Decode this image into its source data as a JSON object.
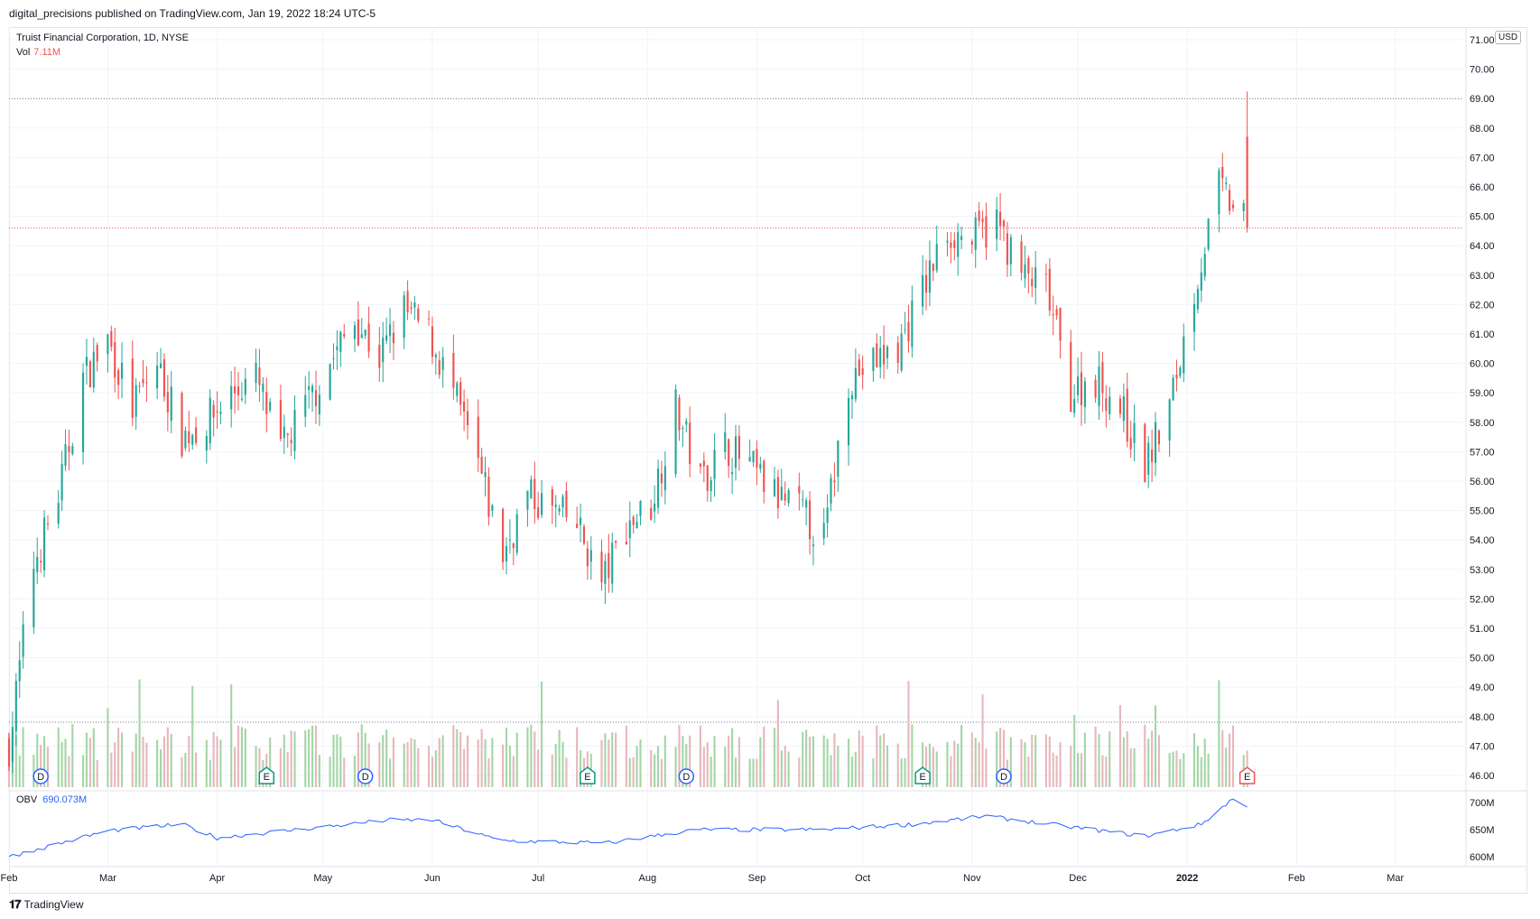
{
  "header": {
    "published_line": "digital_precisions published on TradingView.com, Jan 19, 2022 18:24 UTC-5"
  },
  "legend": {
    "symbol": "Truist Financial Corporation, 1D, NYSE",
    "vol_label": "Vol",
    "vol_value": "7.11M",
    "obv_label": "OBV",
    "obv_value": "690.073M"
  },
  "currency": "USD",
  "footer": {
    "brand": "TradingView"
  },
  "colors": {
    "up": "#26a69a",
    "down": "#ef5350",
    "vol_up": "#a5d6a7",
    "vol_down": "#e6b8bd",
    "obv": "#2962ff",
    "grid": "#f0f3fa"
  },
  "event_badges": [
    {
      "letter": "D",
      "date": "2021-02-10",
      "kind": "dividend"
    },
    {
      "letter": "E",
      "date": "2021-04-15",
      "kind": "earnings"
    },
    {
      "letter": "D",
      "date": "2021-05-13",
      "kind": "dividend"
    },
    {
      "letter": "E",
      "date": "2021-07-15",
      "kind": "earnings"
    },
    {
      "letter": "D",
      "date": "2021-08-12",
      "kind": "dividend"
    },
    {
      "letter": "E",
      "date": "2021-10-18",
      "kind": "earnings"
    },
    {
      "letter": "D",
      "date": "2021-11-10",
      "kind": "dividend"
    },
    {
      "letter": "E",
      "date": "2022-01-18",
      "kind": "earnings-upcoming"
    }
  ],
  "chart_data": {
    "type": "candlestick",
    "title": "Truist Financial Corporation, 1D, NYSE",
    "y_price_ticks": [
      "71.00",
      "70.00",
      "69.00",
      "68.00",
      "67.00",
      "66.00",
      "65.00",
      "64.00",
      "63.00",
      "62.00",
      "61.00",
      "60.00",
      "59.00",
      "58.00",
      "57.00",
      "56.00",
      "55.00",
      "54.00",
      "53.00",
      "52.00",
      "51.00",
      "50.00",
      "49.00",
      "48.00",
      "47.00",
      "46.00"
    ],
    "obv_ticks": [
      "700M",
      "650M",
      "600M"
    ],
    "x_ticks": [
      "Feb",
      "Mar",
      "Apr",
      "May",
      "Jun",
      "Jul",
      "Aug",
      "Sep",
      "Oct",
      "Nov",
      "Dec",
      "2022",
      "Feb",
      "Mar"
    ],
    "ylim": [
      45.6,
      71.0
    ],
    "x_range": [
      "2021-02-01",
      "2022-03-20"
    ],
    "horizontal_lines": [
      {
        "price": 69.0,
        "style": "dotted",
        "color": "#787b86"
      },
      {
        "price": 64.6,
        "style": "dotted",
        "color": "#ef5350"
      }
    ],
    "series": [
      {
        "name": "Price",
        "anchors": [
          [
            "2021-02-01",
            47.0
          ],
          [
            "2021-02-08",
            53.2
          ],
          [
            "2021-02-15",
            55.5
          ],
          [
            "2021-02-22",
            59.5
          ],
          [
            "2021-03-01",
            60.8
          ],
          [
            "2021-03-08",
            58.5
          ],
          [
            "2021-03-15",
            60.0
          ],
          [
            "2021-03-22",
            57.5
          ],
          [
            "2021-03-29",
            58.0
          ],
          [
            "2021-04-05",
            59.0
          ],
          [
            "2021-04-12",
            59.5
          ],
          [
            "2021-04-19",
            57.0
          ],
          [
            "2021-04-26",
            58.5
          ],
          [
            "2021-05-03",
            60.0
          ],
          [
            "2021-05-10",
            61.5
          ],
          [
            "2021-05-17",
            60.2
          ],
          [
            "2021-05-24",
            61.8
          ],
          [
            "2021-05-31",
            61.0
          ],
          [
            "2021-06-07",
            59.0
          ],
          [
            "2021-06-14",
            56.5
          ],
          [
            "2021-06-21",
            53.5
          ],
          [
            "2021-06-28",
            55.5
          ],
          [
            "2021-07-05",
            55.0
          ],
          [
            "2021-07-12",
            54.5
          ],
          [
            "2021-07-19",
            52.5
          ],
          [
            "2021-07-26",
            54.5
          ],
          [
            "2021-08-02",
            55.2
          ],
          [
            "2021-08-09",
            58.5
          ],
          [
            "2021-08-16",
            56.0
          ],
          [
            "2021-08-23",
            57.2
          ],
          [
            "2021-08-30",
            56.5
          ],
          [
            "2021-09-06",
            55.5
          ],
          [
            "2021-09-13",
            55.0
          ],
          [
            "2021-09-20",
            54.0
          ],
          [
            "2021-09-27",
            59.5
          ],
          [
            "2021-10-04",
            60.0
          ],
          [
            "2021-10-11",
            60.5
          ],
          [
            "2021-10-18",
            62.5
          ],
          [
            "2021-10-25",
            64.5
          ],
          [
            "2021-11-01",
            64.2
          ],
          [
            "2021-11-08",
            64.8
          ],
          [
            "2021-11-15",
            63.0
          ],
          [
            "2021-11-22",
            62.5
          ],
          [
            "2021-11-29",
            59.0
          ],
          [
            "2021-12-06",
            59.5
          ],
          [
            "2021-12-13",
            58.5
          ],
          [
            "2021-12-20",
            56.5
          ],
          [
            "2021-12-27",
            58.5
          ],
          [
            "2022-01-03",
            62.5
          ],
          [
            "2022-01-10",
            66.0
          ],
          [
            "2022-01-18",
            64.6
          ]
        ]
      },
      {
        "name": "Vol",
        "unit": "M",
        "last": "7.11M"
      },
      {
        "name": "OBV",
        "last": "690.073M",
        "anchors": [
          [
            "2021-02-01",
            600
          ],
          [
            "2021-03-01",
            648
          ],
          [
            "2021-03-22",
            660
          ],
          [
            "2021-04-01",
            635
          ],
          [
            "2021-05-01",
            655
          ],
          [
            "2021-05-20",
            668
          ],
          [
            "2021-06-01",
            668
          ],
          [
            "2021-06-20",
            630
          ],
          [
            "2021-07-20",
            625
          ],
          [
            "2021-08-15",
            650
          ],
          [
            "2021-09-20",
            650
          ],
          [
            "2021-10-15",
            660
          ],
          [
            "2021-11-05",
            675
          ],
          [
            "2021-12-20",
            638
          ],
          [
            "2022-01-05",
            660
          ],
          [
            "2022-01-14",
            708
          ],
          [
            "2022-01-18",
            690
          ]
        ]
      }
    ]
  }
}
